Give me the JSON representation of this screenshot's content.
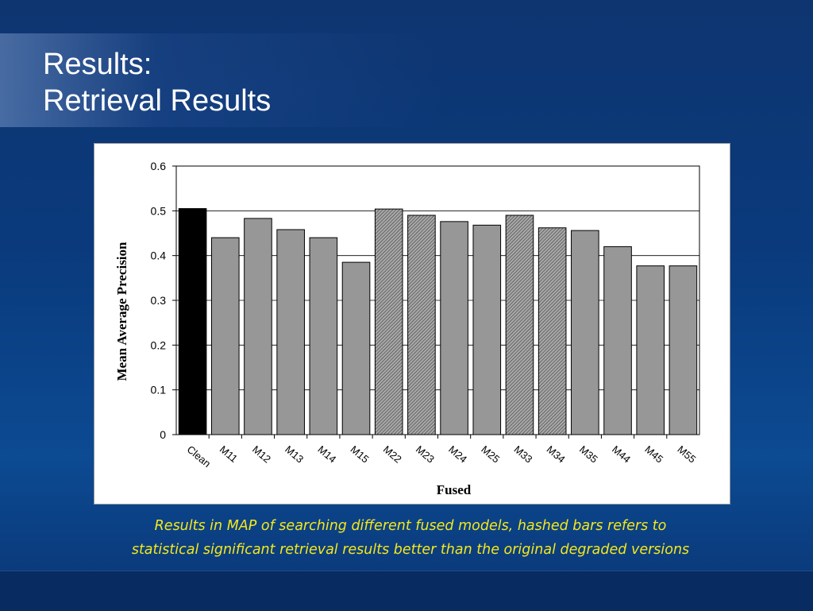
{
  "slide": {
    "title_line1": "Results:",
    "title_line2": "Retrieval Results",
    "caption_line1": "Results in MAP of searching different fused models, hashed bars refers to",
    "caption_line2": "statistical significant retrieval results better than the original degraded versions"
  },
  "colors": {
    "background": "#0b3a7a",
    "caption": "#f4e81c",
    "clean_bar": "#000000",
    "plain_bar": "#979797",
    "hashed_bar": "#8e8e8e"
  },
  "chart_data": {
    "type": "bar",
    "title": "",
    "xlabel": "Fused",
    "ylabel": "Mean Average Precision",
    "ylim": [
      0,
      0.6
    ],
    "yticks": [
      "0",
      "0.1",
      "0.2",
      "0.3",
      "0.4",
      "0.5",
      "0.6"
    ],
    "grid": true,
    "categories": [
      "Clean",
      "M11",
      "M12",
      "M13",
      "M14",
      "M15",
      "M22",
      "M23",
      "M24",
      "M25",
      "M33",
      "M34",
      "M35",
      "M44",
      "M45",
      "M55"
    ],
    "values": [
      0.505,
      0.44,
      0.483,
      0.458,
      0.44,
      0.385,
      0.504,
      0.49,
      0.476,
      0.468,
      0.49,
      0.462,
      0.456,
      0.42,
      0.377,
      0.377
    ],
    "styles": [
      "solid-black",
      "plain",
      "plain",
      "plain",
      "plain",
      "plain",
      "hashed",
      "hashed",
      "plain",
      "plain",
      "hashed",
      "hashed",
      "plain",
      "plain",
      "plain",
      "plain"
    ]
  }
}
